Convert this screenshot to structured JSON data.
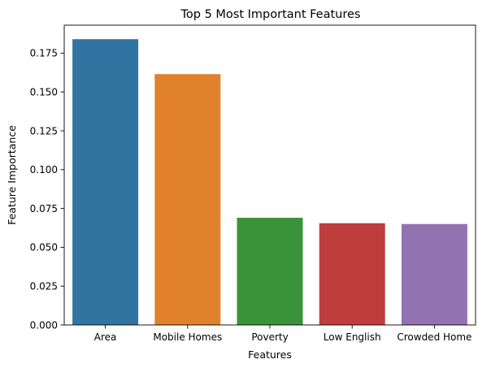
{
  "chart_data": {
    "type": "bar",
    "title": "Top 5 Most Important Features",
    "xlabel": "Features",
    "ylabel": "Feature Importance",
    "categories": [
      "Area",
      "Mobile Homes",
      "Poverty",
      "Low English",
      "Crowded Home"
    ],
    "values": [
      0.184,
      0.1615,
      0.069,
      0.0655,
      0.065
    ],
    "colors": [
      "#3274a1",
      "#e1812c",
      "#3a923a",
      "#c03d3e",
      "#9372b2"
    ],
    "yticks": [
      "0.000",
      "0.025",
      "0.050",
      "0.075",
      "0.100",
      "0.125",
      "0.150",
      "0.175"
    ],
    "ylim": [
      0,
      0.193
    ],
    "grid": false,
    "legend": false
  }
}
